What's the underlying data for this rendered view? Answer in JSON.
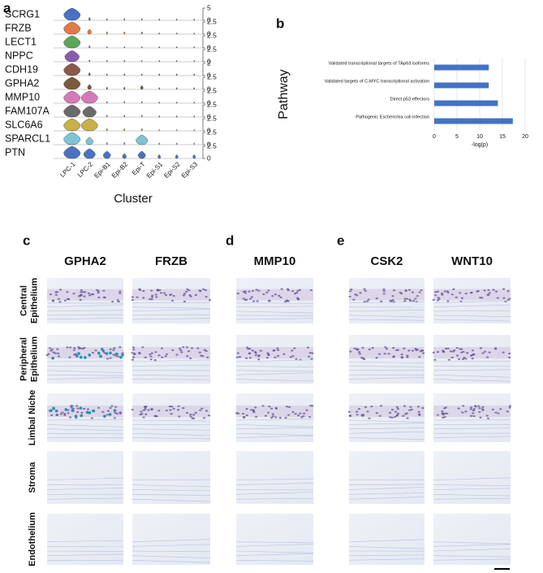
{
  "chart_data": [
    {
      "type": "violin",
      "panel": "a",
      "xlabel": "Cluster",
      "categories": [
        "LPC-1",
        "LPC-2",
        "Epi-B1",
        "Epi-B2",
        "Epi-T",
        "Epi-S1",
        "Epi-S2",
        "Epi-S3"
      ],
      "series": [
        {
          "name": "SCRG1",
          "color": "#4a72c4",
          "ylim": [
            0,
            5
          ],
          "yticks": [
            0,
            5
          ],
          "values": [
            5,
            1.2,
            0.8,
            0.8,
            0.8,
            0.6,
            0.6,
            0.6
          ]
        },
        {
          "name": "FRZB",
          "color": "#e07a4a",
          "ylim": [
            0,
            2.5
          ],
          "yticks": [
            0,
            2.5
          ],
          "values": [
            2.5,
            1,
            0.5,
            0.5,
            0.5,
            0.3,
            0.3,
            0.3
          ]
        },
        {
          "name": "LECT1",
          "color": "#5aa65a",
          "ylim": [
            0,
            2.5
          ],
          "yticks": [
            0,
            2.5
          ],
          "values": [
            2.5,
            0.5,
            0.3,
            0.3,
            0.3,
            0.3,
            0.3,
            0.3
          ]
        },
        {
          "name": "NPPC",
          "color": "#8b5bb3",
          "ylim": [
            0,
            2.5
          ],
          "yticks": [
            0,
            2.5
          ],
          "values": [
            2.3,
            0.4,
            0.3,
            0.3,
            0.3,
            0.3,
            0.3,
            0.3
          ]
        },
        {
          "name": "CDH19",
          "color": "#8a5a4a",
          "ylim": [
            0,
            2
          ],
          "yticks": [
            0,
            2
          ],
          "values": [
            2,
            0.5,
            0.3,
            0.3,
            0.3,
            0.3,
            0.3,
            0.3
          ]
        },
        {
          "name": "GPHA2",
          "color": "#7a5a3a",
          "ylim": [
            0,
            2.5
          ],
          "yticks": [
            0,
            2.5
          ],
          "values": [
            2.5,
            1,
            0.5,
            0.5,
            0.8,
            0.4,
            0.4,
            0.4
          ]
        },
        {
          "name": "MMP10",
          "color": "#d47ab8",
          "ylim": [
            0,
            2.5
          ],
          "yticks": [
            0,
            2.5
          ],
          "values": [
            2.5,
            2.5,
            0.4,
            0.4,
            0.4,
            0.3,
            0.3,
            0.3
          ]
        },
        {
          "name": "FAM107A",
          "color": "#6a6a6a",
          "ylim": [
            0,
            2.5
          ],
          "yticks": [
            0,
            2.5
          ],
          "values": [
            2.5,
            2.2,
            0.4,
            0.4,
            0.4,
            0.3,
            0.3,
            0.3
          ]
        },
        {
          "name": "SLC6A6",
          "color": "#c8b04a",
          "ylim": [
            0,
            2.5
          ],
          "yticks": [
            0,
            2.5
          ],
          "values": [
            2.5,
            2.5,
            0.5,
            0.5,
            0.5,
            0.3,
            0.3,
            0.3
          ]
        },
        {
          "name": "SPARCL1",
          "color": "#7ec4d8",
          "ylim": [
            0,
            2.5
          ],
          "yticks": [
            0,
            2.5
          ],
          "values": [
            2.5,
            1.5,
            0.5,
            0.5,
            2,
            0.4,
            0.4,
            0.4
          ]
        },
        {
          "name": "PTN",
          "color": "#4a72c4",
          "ylim": [
            0,
            2.5
          ],
          "yticks": [
            0,
            2.5
          ],
          "values": [
            2.5,
            2,
            1.5,
            1,
            1.5,
            0.8,
            0.8,
            0.8
          ]
        }
      ]
    },
    {
      "type": "hbar",
      "panel": "b",
      "xlabel": "-log(p)",
      "ylabel": "Pathway",
      "color": "#4472c4",
      "categories": [
        "Validated transcriptional targets of TAp63 isoforms",
        "Validated targets of C-MYC transcriptional activation",
        "Direct p53 effectors",
        "Pathogenic Escherichia coli infection"
      ],
      "values": [
        12,
        12,
        14,
        17.3
      ],
      "xlim": [
        0,
        20
      ],
      "xticks": [
        0,
        5,
        10,
        15,
        20
      ],
      "grid": true
    }
  ],
  "histology": {
    "panels": [
      {
        "letter": "c",
        "genes": [
          "GPHA2",
          "FRZB"
        ]
      },
      {
        "letter": "d",
        "genes": [
          "MMP10"
        ]
      },
      {
        "letter": "e",
        "genes": [
          "CSK2",
          "WNT10"
        ]
      }
    ],
    "rows": [
      [
        "Central",
        "Epithelium"
      ],
      [
        "Peripheral",
        "Epithelium"
      ],
      [
        "Limbal Niche"
      ],
      [
        "Stroma"
      ],
      [
        "Endothelium"
      ]
    ]
  }
}
